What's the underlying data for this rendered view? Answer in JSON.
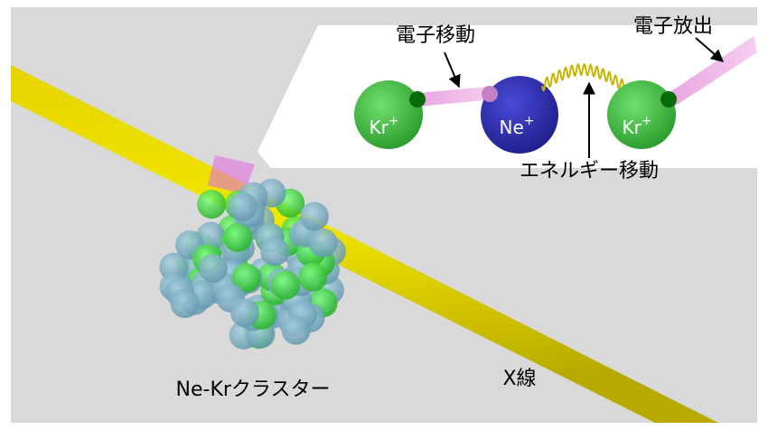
{
  "callout": {
    "electron_transfer": "電子移動",
    "electron_emission": "電子放出",
    "energy_transfer": "エネルギー移動",
    "atoms": [
      {
        "symbol": "Kr",
        "charge": "+"
      },
      {
        "symbol": "Ne",
        "charge": "+"
      },
      {
        "symbol": "Kr",
        "charge": "+"
      }
    ]
  },
  "cluster_label": "Ne-Krクラスター",
  "beam_label": "X線"
}
